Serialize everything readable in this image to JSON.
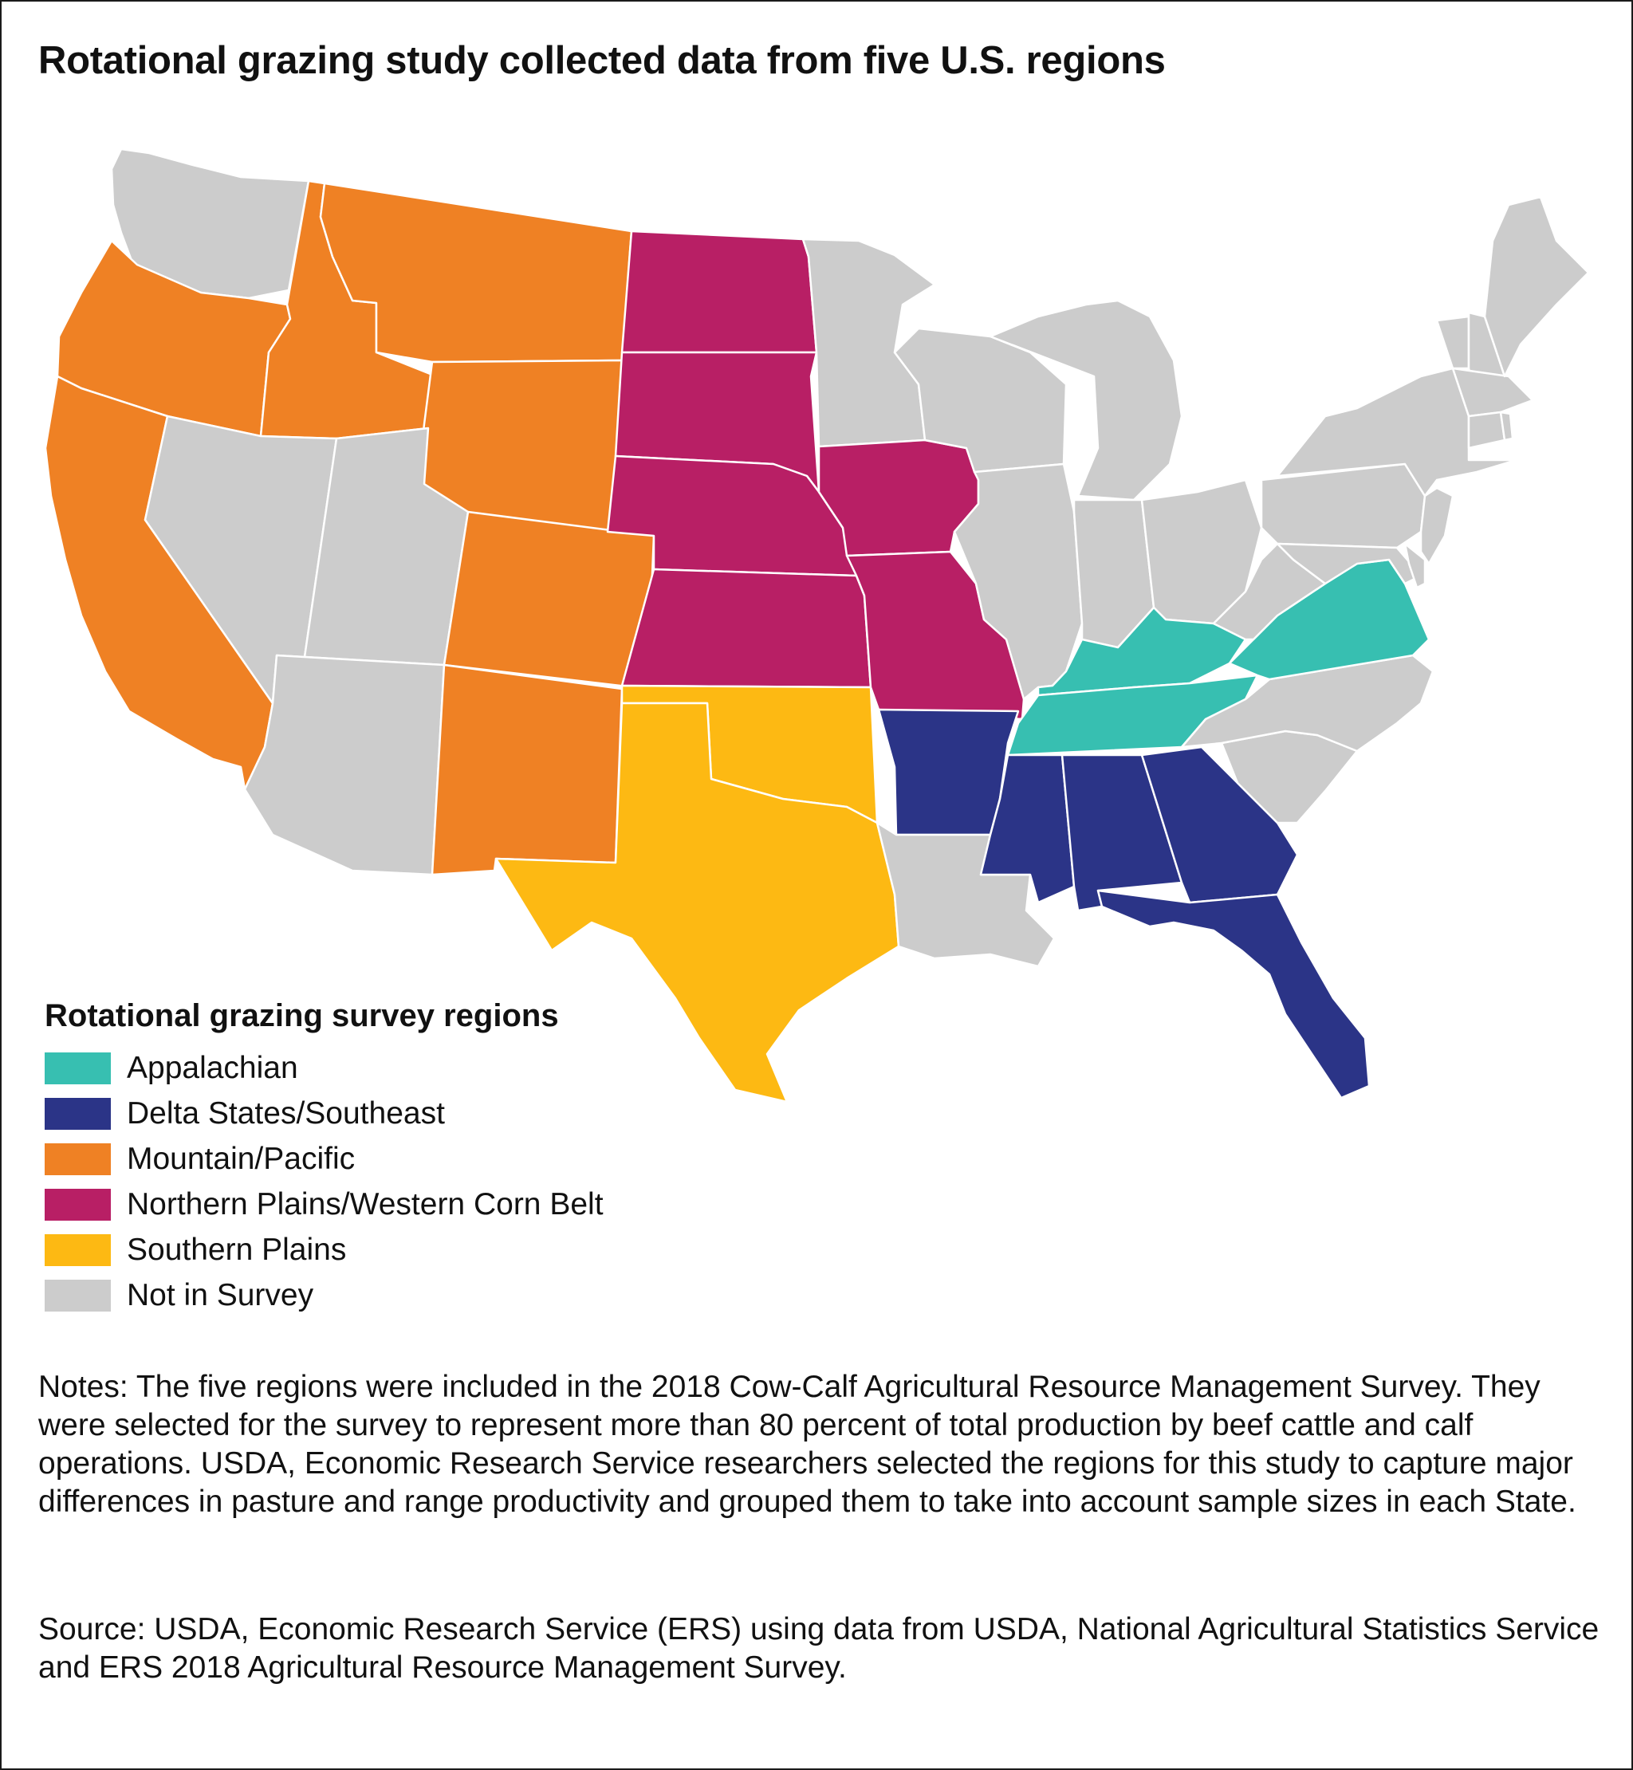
{
  "title": "Rotational grazing study collected data from five U.S. regions",
  "legend": {
    "title": "Rotational grazing survey regions",
    "items": [
      {
        "label": "Appalachian",
        "color": "#37bfb1"
      },
      {
        "label": "Delta States/Southeast",
        "color": "#2b3487"
      },
      {
        "label": "Mountain/Pacific",
        "color": "#ef8124"
      },
      {
        "label": "Northern Plains/Western Corn Belt",
        "color": "#b81f65"
      },
      {
        "label": "Southern Plains",
        "color": "#fdb913"
      },
      {
        "label": "Not in Survey",
        "color": "#cccccc"
      }
    ]
  },
  "regions": {
    "Appalachian": [
      "Kentucky",
      "Tennessee",
      "Virginia"
    ],
    "Delta States/Southeast": [
      "Arkansas",
      "Mississippi",
      "Alabama",
      "Georgia",
      "Florida"
    ],
    "Mountain/Pacific": [
      "Oregon",
      "California",
      "Idaho",
      "Montana",
      "Wyoming",
      "Colorado",
      "New Mexico"
    ],
    "Northern Plains/Western Corn Belt": [
      "North Dakota",
      "South Dakota",
      "Nebraska",
      "Kansas",
      "Iowa",
      "Missouri"
    ],
    "Southern Plains": [
      "Oklahoma",
      "Texas"
    ]
  },
  "notes": "Notes: The five regions were included in the 2018 Cow-Calf Agricultural Resource Management Survey. They were selected for the survey to represent more than 80 percent of total production by beef cattle and calf operations. USDA, Economic Research Service researchers selected the regions for this study to capture major differences in pasture and range productivity and grouped them to take into account sample sizes in each State.",
  "source": "Source: USDA, Economic Research Service (ERS) using data from USDA, National Agricultural Statistics Service and ERS 2018 Agricultural Resource Management Survey."
}
